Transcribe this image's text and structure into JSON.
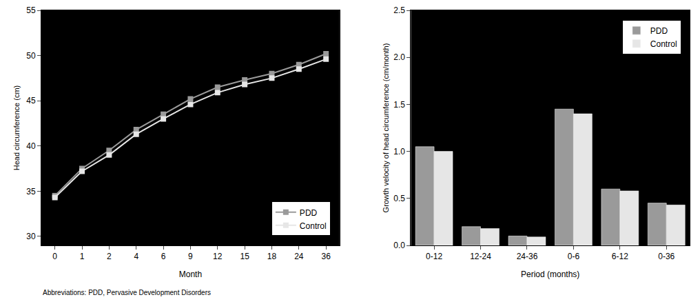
{
  "chart_data": [
    {
      "type": "line",
      "x_label": "Month",
      "y_label": "Head circumference (cm)",
      "categories": [
        "0",
        "1",
        "2",
        "4",
        "6",
        "9",
        "12",
        "15",
        "18",
        "24",
        "36"
      ],
      "series": [
        {
          "name": "PDD",
          "color": "#9a9a9a",
          "marker": "square",
          "values": [
            34.5,
            37.5,
            39.5,
            41.8,
            43.5,
            45.2,
            46.5,
            47.3,
            48.0,
            49.0,
            50.2
          ]
        },
        {
          "name": "Control",
          "color": "#e6e6e6",
          "marker": "square",
          "values": [
            34.3,
            37.2,
            39.0,
            41.3,
            43.0,
            44.6,
            45.9,
            46.8,
            47.5,
            48.5,
            49.6
          ]
        }
      ],
      "ylim": [
        29,
        55
      ],
      "yticks": [
        30,
        35,
        40,
        45,
        50,
        55
      ],
      "grid": false,
      "legend": "lower right"
    },
    {
      "type": "bar",
      "x_label": "Period (months)",
      "y_label": "Growth velocity of head circumference (cm/month)",
      "categories": [
        "0-12",
        "12-24",
        "24-36",
        "0-6",
        "6-12",
        "0-36"
      ],
      "series": [
        {
          "name": "PDD",
          "color": "#9a9a9a",
          "values": [
            1.05,
            0.2,
            0.1,
            1.45,
            0.6,
            0.45
          ]
        },
        {
          "name": "Control",
          "color": "#e6e6e6",
          "values": [
            1.0,
            0.18,
            0.09,
            1.4,
            0.58,
            0.43
          ]
        }
      ],
      "ylim": [
        0,
        2.5
      ],
      "yticks": [
        {
          "value": 0,
          "label": "0.0"
        },
        {
          "value": 0.5,
          "label": "0.5"
        },
        {
          "value": 1,
          "label": "1.0"
        },
        {
          "value": 1.5,
          "label": "1.5"
        },
        {
          "value": 2,
          "label": "2.0"
        },
        {
          "value": 2.5,
          "label": "2.5"
        }
      ],
      "grid": false,
      "legend": "upper right"
    }
  ],
  "note": "Abbreviations: PDD, Pervasive Development Disorders"
}
